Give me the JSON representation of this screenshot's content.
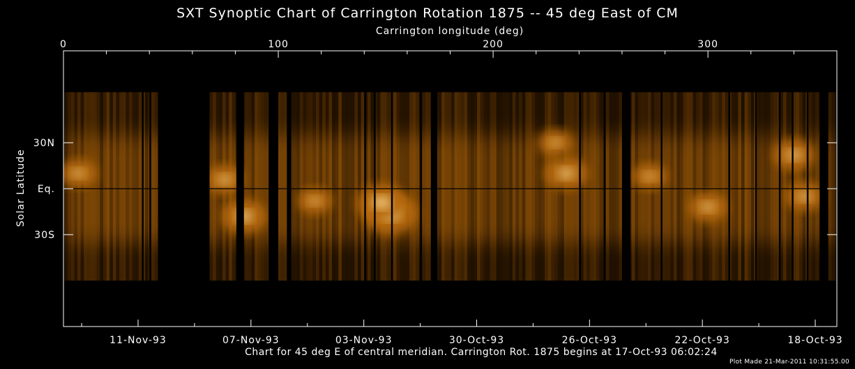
{
  "page": {
    "title": "SXT Synoptic Chart of Carrington Rotation 1875 -- 45 deg East of CM",
    "caption": "Chart for 45 deg E of central meridian.  Carrington Rot. 1875 begins at 17-Oct-93 06:02:24",
    "plot_stamp": "Plot Made 21-Mar-2011 10:31:55.00"
  },
  "chart_data": {
    "type": "heatmap",
    "title": "SXT Synoptic Chart of Carrington Rotation 1875 -- 45 deg East of CM",
    "xlabel": "Carrington longitude (deg)",
    "ylabel": "Solar Latitude",
    "xlim": [
      0,
      360
    ],
    "x_major_ticks": [
      0,
      100,
      200,
      300
    ],
    "ylim": [
      -90,
      90
    ],
    "y_ticks": [
      {
        "value": 30,
        "label": "30N"
      },
      {
        "value": 0,
        "label": "Eq."
      },
      {
        "value": -30,
        "label": "30S"
      }
    ],
    "date_ticks": [
      "11-Nov-93",
      "07-Nov-93",
      "03-Nov-93",
      "30-Oct-93",
      "26-Oct-93",
      "22-Oct-93",
      "18-Oct-93"
    ],
    "colormap": "black-orange-white",
    "color_dark": "#2a1600",
    "color_mid": "#b86a08",
    "color_bright": "#ffe4a0",
    "data_lat_range": [
      -60,
      63
    ],
    "data_gaps_lon": [
      [
        44,
        68
      ],
      [
        80.5,
        84
      ],
      [
        95.5,
        100
      ],
      [
        104,
        106
      ],
      [
        171,
        174
      ],
      [
        260,
        264
      ],
      [
        352,
        356
      ]
    ],
    "gap_lines_lon": [
      36.5,
      40,
      140,
      144.5,
      152.5,
      166,
      240,
      251.5,
      278,
      309.5,
      322,
      333,
      339,
      346
    ],
    "bright_regions": [
      {
        "lon": 152,
        "lat": -16,
        "intensity": 1.0
      },
      {
        "lon": 148,
        "lat": -9,
        "intensity": 0.85
      },
      {
        "lon": 84,
        "lat": -18,
        "intensity": 0.75
      },
      {
        "lon": 75,
        "lat": 6,
        "intensity": 0.6
      },
      {
        "lon": 7,
        "lat": 10,
        "intensity": 0.55
      },
      {
        "lon": 300,
        "lat": -12,
        "intensity": 0.6
      },
      {
        "lon": 340,
        "lat": 22,
        "intensity": 0.65
      },
      {
        "lon": 345,
        "lat": -5,
        "intensity": 0.6
      },
      {
        "lon": 234,
        "lat": 10,
        "intensity": 0.7
      },
      {
        "lon": 273,
        "lat": 8,
        "intensity": 0.5
      },
      {
        "lon": 229,
        "lat": 30,
        "intensity": 0.5
      },
      {
        "lon": 117,
        "lat": -8,
        "intensity": 0.5
      }
    ]
  }
}
